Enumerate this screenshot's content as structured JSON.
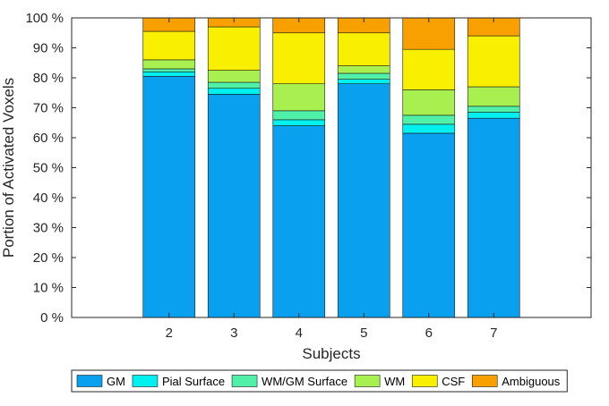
{
  "chart_data": {
    "type": "bar",
    "stacked": true,
    "xlabel": "Subjects",
    "ylabel": "Portion of Activated Voxels",
    "categories": [
      "2",
      "3",
      "4",
      "5",
      "6",
      "7"
    ],
    "ylim": [
      0,
      100
    ],
    "yticks": [
      0,
      10,
      20,
      30,
      40,
      50,
      60,
      70,
      80,
      90,
      100
    ],
    "ytick_suffix": " %",
    "grid": false,
    "legend_position": "bottom",
    "series": [
      {
        "name": "GM",
        "color": "#0aa0f0",
        "values": [
          80.5,
          74.5,
          64.0,
          78.0,
          61.5,
          66.5
        ]
      },
      {
        "name": "Pial Surface",
        "color": "#00f0f0",
        "values": [
          1.5,
          2.0,
          2.0,
          1.5,
          3.0,
          2.0
        ]
      },
      {
        "name": "WM/GM Surface",
        "color": "#50f0a8",
        "values": [
          1.0,
          2.0,
          3.0,
          2.0,
          3.0,
          2.0
        ]
      },
      {
        "name": "WM",
        "color": "#a8f050",
        "values": [
          3.0,
          4.0,
          9.0,
          2.5,
          8.5,
          6.5
        ]
      },
      {
        "name": "CSF",
        "color": "#f8f000",
        "values": [
          9.5,
          14.5,
          17.0,
          11.0,
          13.5,
          17.0
        ]
      },
      {
        "name": "Ambiguous",
        "color": "#f8a000",
        "values": [
          4.5,
          3.0,
          5.0,
          5.0,
          10.5,
          6.0
        ]
      }
    ]
  }
}
